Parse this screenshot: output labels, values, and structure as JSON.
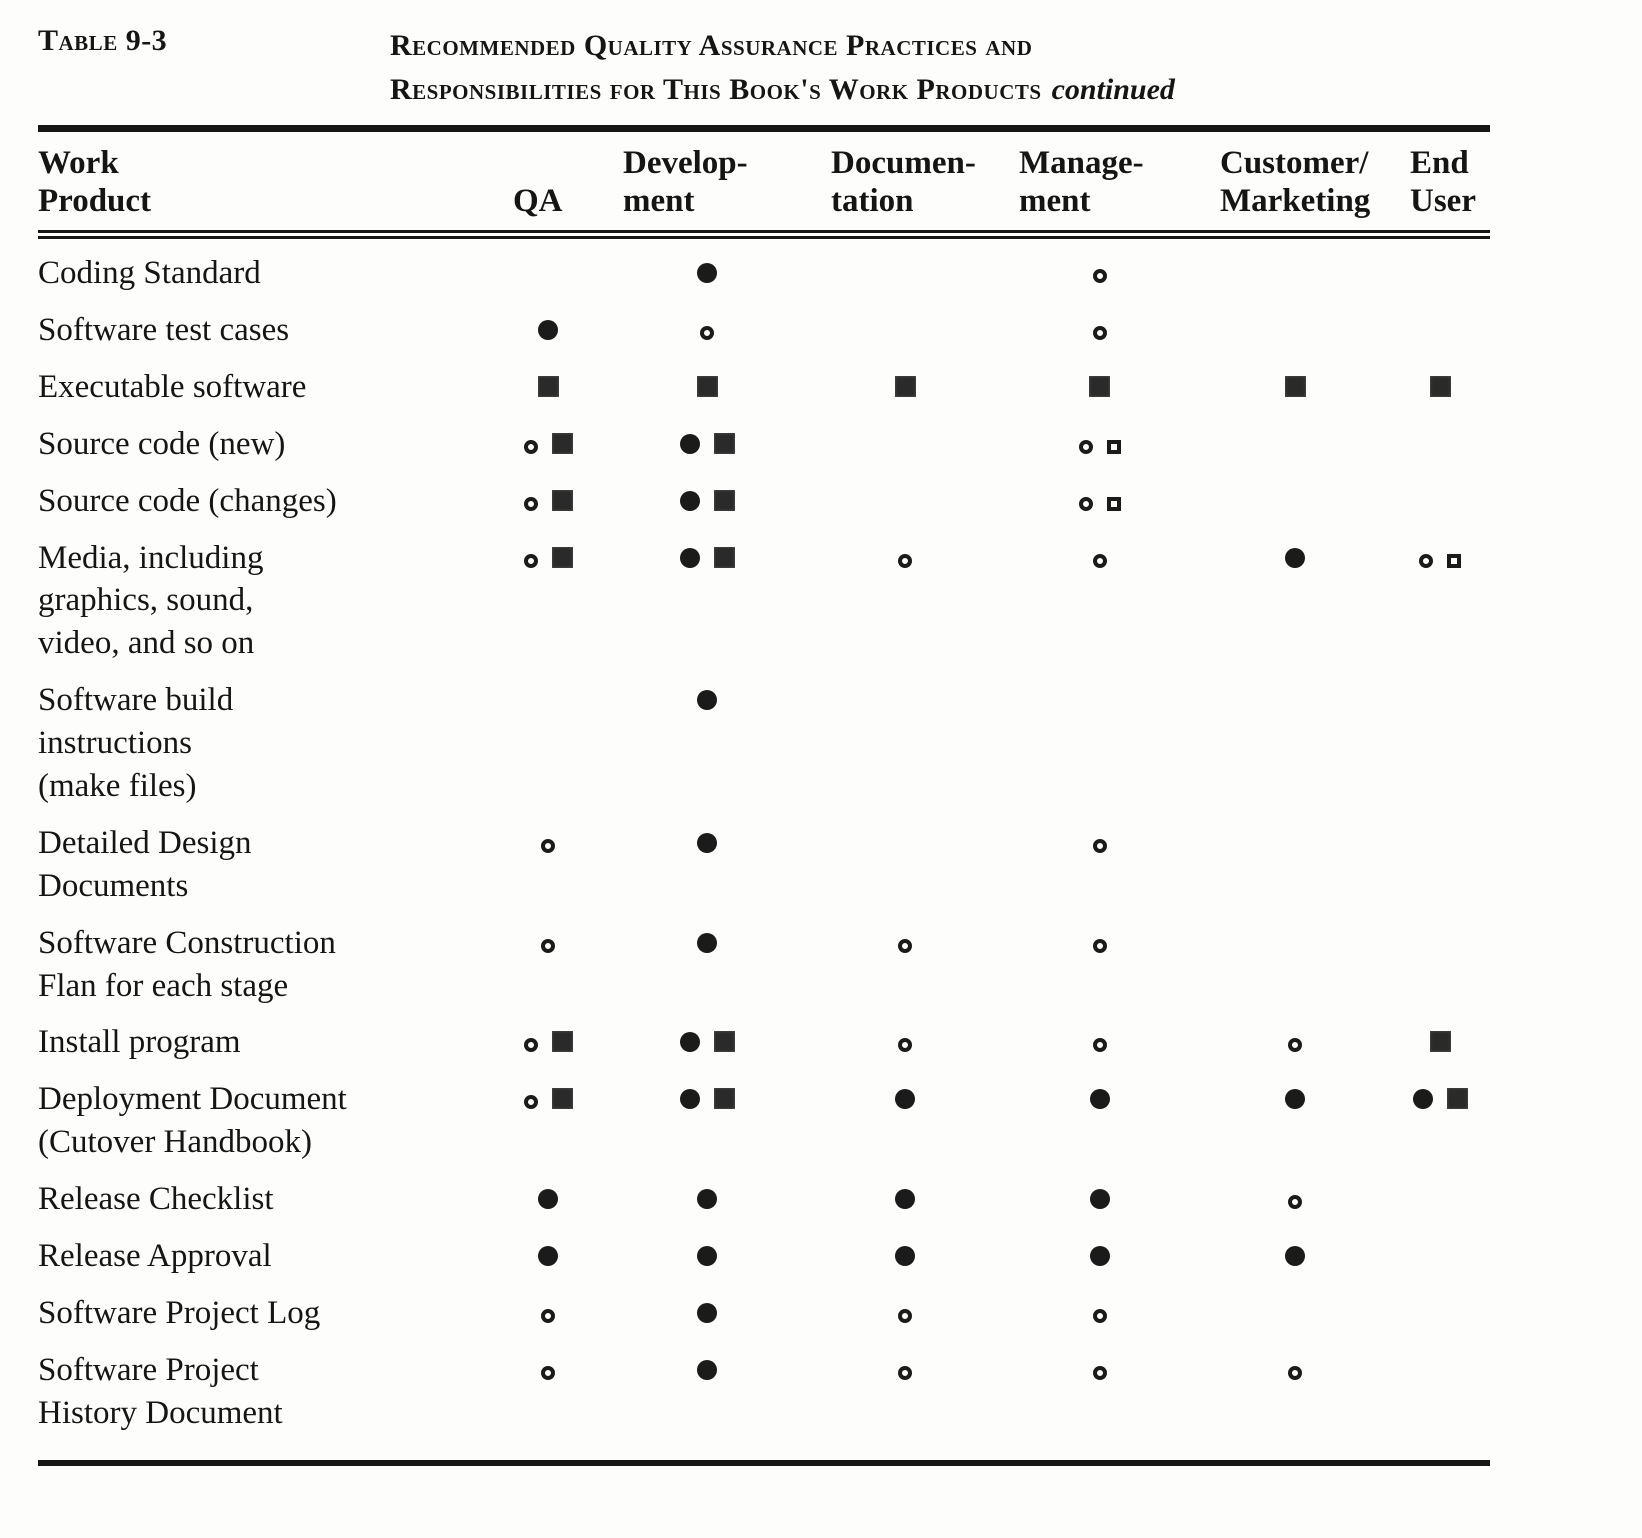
{
  "page": {
    "label": "Table 9-3",
    "title_line1": "Recommended Quality Assurance Practices and",
    "title_line2": "Responsibilities for This Book's Work Products",
    "title_continued": "continued"
  },
  "table": {
    "columns": [
      "Work\nProduct",
      "QA",
      "Develop-\nment",
      "Documen-\ntation",
      "Manage-\nment",
      "Customer/\nMarketing",
      "End\nUser"
    ],
    "symbols": {
      "filled-circle": "●",
      "open-circle": "○",
      "filled-square": "■",
      "open-square": "□"
    },
    "rows": [
      {
        "product": "Coding Standard",
        "cells": [
          [],
          [
            "filled-circle"
          ],
          [],
          [
            "open-circle"
          ],
          [],
          []
        ]
      },
      {
        "product": "Software test cases",
        "cells": [
          [
            "filled-circle"
          ],
          [
            "open-circle"
          ],
          [],
          [
            "open-circle"
          ],
          [],
          []
        ]
      },
      {
        "product": "Executable software",
        "cells": [
          [
            "filled-square"
          ],
          [
            "filled-square"
          ],
          [
            "filled-square"
          ],
          [
            "filled-square"
          ],
          [
            "filled-square"
          ],
          [
            "filled-square"
          ]
        ]
      },
      {
        "product": "Source code (new)",
        "cells": [
          [
            "open-circle",
            "filled-square"
          ],
          [
            "filled-circle",
            "filled-square"
          ],
          [],
          [
            "open-circle",
            "open-square"
          ],
          [],
          []
        ]
      },
      {
        "product": "Source code (changes)",
        "cells": [
          [
            "open-circle",
            "filled-square"
          ],
          [
            "filled-circle",
            "filled-square"
          ],
          [],
          [
            "open-circle",
            "open-square"
          ],
          [],
          []
        ]
      },
      {
        "product": "Media, including\ngraphics, sound,\nvideo, and so on",
        "cells": [
          [
            "open-circle",
            "filled-square"
          ],
          [
            "filled-circle",
            "filled-square"
          ],
          [
            "open-circle"
          ],
          [
            "open-circle"
          ],
          [
            "filled-circle"
          ],
          [
            "open-circle",
            "open-square"
          ]
        ]
      },
      {
        "product": "Software build\ninstructions\n(make files)",
        "cells": [
          [],
          [
            "filled-circle"
          ],
          [],
          [],
          [],
          []
        ]
      },
      {
        "product": "Detailed Design\nDocuments",
        "cells": [
          [
            "open-circle"
          ],
          [
            "filled-circle"
          ],
          [],
          [
            "open-circle"
          ],
          [],
          []
        ]
      },
      {
        "product": "Software Construction\nFlan for each stage",
        "cells": [
          [
            "open-circle"
          ],
          [
            "filled-circle"
          ],
          [
            "open-circle"
          ],
          [
            "open-circle"
          ],
          [],
          []
        ]
      },
      {
        "product": "Install program",
        "cells": [
          [
            "open-circle",
            "filled-square"
          ],
          [
            "filled-circle",
            "filled-square"
          ],
          [
            "open-circle"
          ],
          [
            "open-circle"
          ],
          [
            "open-circle"
          ],
          [
            "filled-square"
          ]
        ]
      },
      {
        "product": "Deployment Document\n(Cutover Handbook)",
        "cells": [
          [
            "open-circle",
            "filled-square"
          ],
          [
            "filled-circle",
            "filled-square"
          ],
          [
            "filled-circle"
          ],
          [
            "filled-circle"
          ],
          [
            "filled-circle"
          ],
          [
            "filled-circle",
            "filled-square"
          ]
        ]
      },
      {
        "product": "Release Checklist",
        "cells": [
          [
            "filled-circle"
          ],
          [
            "filled-circle"
          ],
          [
            "filled-circle"
          ],
          [
            "filled-circle"
          ],
          [
            "open-circle"
          ],
          []
        ]
      },
      {
        "product": "Release Approval",
        "cells": [
          [
            "filled-circle"
          ],
          [
            "filled-circle"
          ],
          [
            "filled-circle"
          ],
          [
            "filled-circle"
          ],
          [
            "filled-circle"
          ],
          []
        ]
      },
      {
        "product": "Software Project Log",
        "cells": [
          [
            "open-circle"
          ],
          [
            "filled-circle"
          ],
          [
            "open-circle"
          ],
          [
            "open-circle"
          ],
          [],
          []
        ]
      },
      {
        "product": "Software Project\nHistory Document",
        "cells": [
          [
            "open-circle"
          ],
          [
            "filled-circle"
          ],
          [
            "open-circle"
          ],
          [
            "open-circle"
          ],
          [
            "open-circle"
          ],
          []
        ]
      }
    ]
  }
}
